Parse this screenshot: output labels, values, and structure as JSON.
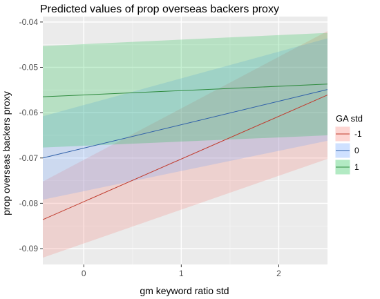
{
  "chart_data": {
    "type": "line",
    "title": "Predicted values of prop overseas backers proxy",
    "xlabel": "gm keyword ratio std",
    "ylabel": "prop overseas backers proxy",
    "xlim": [
      -0.42,
      2.5
    ],
    "ylim": [
      -0.0935,
      -0.0388
    ],
    "x_ticks": [
      0,
      1,
      2
    ],
    "x_tick_labels": [
      "0",
      "1",
      "2"
    ],
    "y_ticks": [
      -0.09,
      -0.08,
      -0.07,
      -0.06,
      -0.05,
      -0.04
    ],
    "y_tick_labels": [
      "-0.09",
      "-0.08",
      "-0.07",
      "-0.06",
      "-0.05",
      "-0.04"
    ],
    "grid": true,
    "legend": {
      "title": "GA std",
      "position": "right"
    },
    "series": [
      {
        "name": "-1",
        "color": "#C0392B",
        "fill": "#F8766D",
        "x": [
          -0.42,
          2.5
        ],
        "y": [
          -0.0836,
          -0.0561
        ],
        "lower": [
          -0.092,
          -0.0702
        ],
        "upper": [
          -0.0752,
          -0.042
        ]
      },
      {
        "name": "0",
        "color": "#2E5FA8",
        "fill": "#619CFF",
        "x": [
          -0.42,
          2.5
        ],
        "y": [
          -0.07,
          -0.0549
        ],
        "lower": [
          -0.0792,
          -0.0662
        ],
        "upper": [
          -0.0608,
          -0.0436
        ]
      },
      {
        "name": "1",
        "color": "#2E8B3E",
        "fill": "#00BA38",
        "x": [
          -0.42,
          2.5
        ],
        "y": [
          -0.0565,
          -0.0537
        ],
        "lower": [
          -0.0677,
          -0.065
        ],
        "upper": [
          -0.0453,
          -0.0424
        ]
      }
    ]
  }
}
